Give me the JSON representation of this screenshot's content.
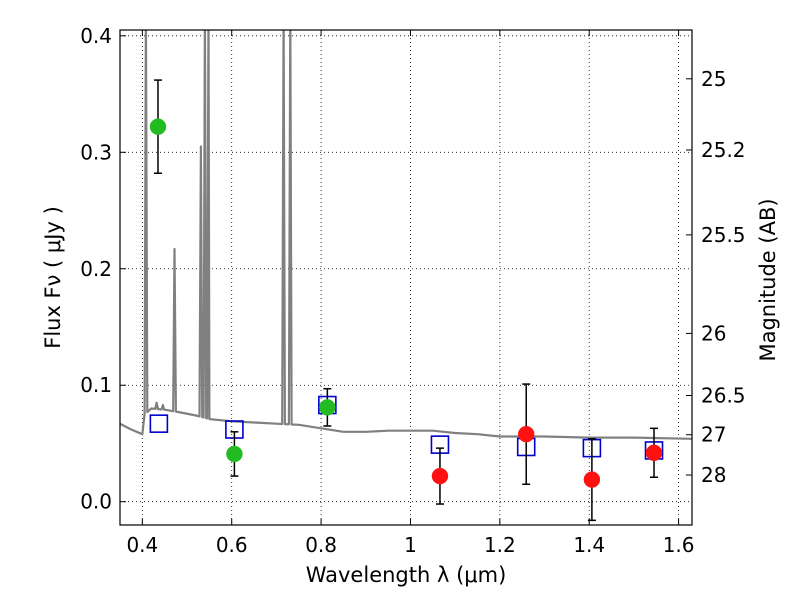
{
  "chart_data": {
    "type": "scatter",
    "title": "",
    "xlabel": "Wavelength  λ (μm)",
    "ylabel": "Flux  Fν  ( μJy )",
    "y2label": "Magnitude (AB)",
    "xlim": [
      0.35,
      1.63
    ],
    "ylim": [
      -0.02,
      0.405
    ],
    "x_ticks": [
      0.4,
      0.6,
      0.8,
      1.0,
      1.2,
      1.4,
      1.6
    ],
    "x_tick_labels": [
      "0.4",
      "0.6",
      "0.8",
      "1",
      "1.2",
      "1.4",
      "1.6"
    ],
    "y_ticks": [
      0.0,
      0.1,
      0.2,
      0.3,
      0.4
    ],
    "y_tick_labels": [
      "0.0",
      "0.1",
      "0.2",
      "0.3",
      "0.4"
    ],
    "y2_ticks": [
      {
        "label": "25",
        "flux": 0.3631
      },
      {
        "label": "25.2",
        "flux": 0.302
      },
      {
        "label": "25.5",
        "flux": 0.2291
      },
      {
        "label": "26",
        "flux": 0.1445
      },
      {
        "label": "26.5",
        "flux": 0.0912
      },
      {
        "label": "27",
        "flux": 0.0575
      },
      {
        "label": "28",
        "flux": 0.0229
      }
    ],
    "grid": true,
    "series": [
      {
        "marker": "filled-circle",
        "color": "#22bb22",
        "points": [
          {
            "x": 0.435,
            "y": 0.322,
            "err": 0.04
          },
          {
            "x": 0.606,
            "y": 0.041,
            "err": 0.019
          },
          {
            "x": 0.814,
            "y": 0.081,
            "err": 0.016
          }
        ]
      },
      {
        "marker": "filled-circle",
        "color": "#ff1111",
        "points": [
          {
            "x": 1.066,
            "y": 0.022,
            "err": 0.024
          },
          {
            "x": 1.259,
            "y": 0.058,
            "err": 0.043
          },
          {
            "x": 1.406,
            "y": 0.019,
            "err": 0.035
          },
          {
            "x": 1.545,
            "y": 0.042,
            "err": 0.021
          }
        ]
      },
      {
        "marker": "open-square",
        "color": "#0000cc",
        "points": [
          {
            "x": 0.437,
            "y": 0.067
          },
          {
            "x": 0.606,
            "y": 0.062
          },
          {
            "x": 0.814,
            "y": 0.083
          },
          {
            "x": 1.066,
            "y": 0.049
          },
          {
            "x": 1.259,
            "y": 0.047
          },
          {
            "x": 1.406,
            "y": 0.046
          },
          {
            "x": 1.545,
            "y": 0.044
          }
        ]
      }
    ],
    "sed_model": {
      "color": "#808080",
      "continuum": [
        [
          0.35,
          0.067
        ],
        [
          0.375,
          0.062
        ],
        [
          0.4,
          0.058
        ],
        [
          0.405,
          0.075
        ],
        [
          0.42,
          0.08
        ],
        [
          0.45,
          0.079
        ],
        [
          0.48,
          0.077
        ],
        [
          0.52,
          0.074
        ],
        [
          0.55,
          0.071
        ],
        [
          0.6,
          0.069
        ],
        [
          0.65,
          0.068
        ],
        [
          0.7,
          0.067
        ],
        [
          0.75,
          0.066
        ],
        [
          0.8,
          0.063
        ],
        [
          0.85,
          0.06
        ],
        [
          0.9,
          0.06
        ],
        [
          0.95,
          0.061
        ],
        [
          1.0,
          0.061
        ],
        [
          1.05,
          0.061
        ],
        [
          1.1,
          0.059
        ],
        [
          1.15,
          0.058
        ],
        [
          1.2,
          0.056
        ],
        [
          1.3,
          0.056
        ],
        [
          1.4,
          0.055
        ],
        [
          1.5,
          0.055
        ],
        [
          1.63,
          0.054
        ]
      ],
      "lines": [
        {
          "x": 0.408,
          "peak": 0.42
        },
        {
          "x": 0.432,
          "peak": 0.085
        },
        {
          "x": 0.446,
          "peak": 0.083
        },
        {
          "x": 0.472,
          "peak": 0.217
        },
        {
          "x": 0.531,
          "peak": 0.305
        },
        {
          "x": 0.54,
          "peak": 0.42
        },
        {
          "x": 0.548,
          "peak": 0.42
        },
        {
          "x": 0.716,
          "peak": 0.42
        },
        {
          "x": 0.731,
          "peak": 0.42
        }
      ]
    }
  }
}
